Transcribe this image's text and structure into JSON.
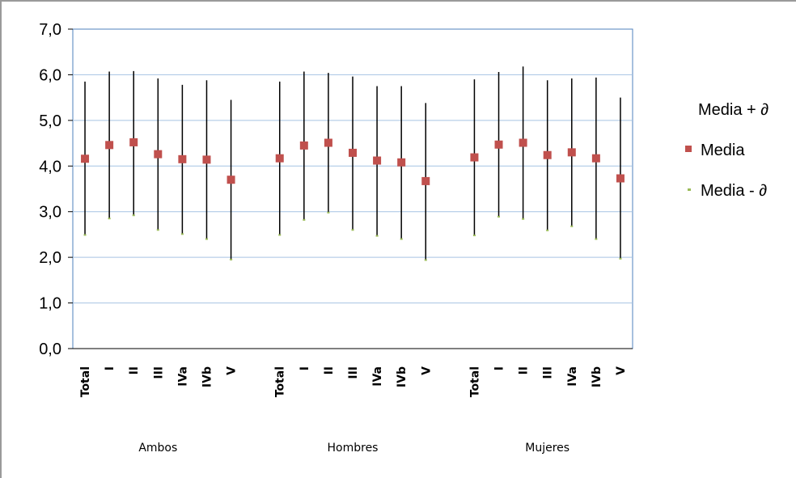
{
  "chart_data": {
    "type": "scatter",
    "title": "",
    "xlabel": "",
    "ylabel": "",
    "ylim": [
      0,
      7
    ],
    "y_ticks": [
      "0,0",
      "1,0",
      "2,0",
      "3,0",
      "4,0",
      "5,0",
      "6,0",
      "7,0"
    ],
    "grid": "horizontal",
    "legend_position": "right",
    "groups": [
      "Ambos",
      "Hombres",
      "Mujeres"
    ],
    "categories": [
      "Total",
      "I",
      "II",
      "III",
      "IVa",
      "IVb",
      "V"
    ],
    "series": [
      {
        "name": "Media + ∂",
        "color": "#000000",
        "values": [
          [
            5.85,
            6.07,
            6.08,
            5.92,
            5.78,
            5.88,
            5.45
          ],
          [
            5.85,
            6.07,
            6.04,
            5.96,
            5.75,
            5.75,
            5.38
          ],
          [
            5.9,
            6.06,
            6.18,
            5.88,
            5.92,
            5.94,
            5.5
          ]
        ]
      },
      {
        "name": "Media",
        "color": "#c0504d",
        "values": [
          [
            4.16,
            4.46,
            4.52,
            4.26,
            4.15,
            4.14,
            3.7
          ],
          [
            4.17,
            4.45,
            4.51,
            4.29,
            4.12,
            4.08,
            3.67
          ],
          [
            4.19,
            4.47,
            4.51,
            4.24,
            4.3,
            4.17,
            3.73
          ]
        ]
      },
      {
        "name": "Media - ∂",
        "color": "#9bbb59",
        "values": [
          [
            2.49,
            2.85,
            2.92,
            2.6,
            2.51,
            2.4,
            1.95
          ],
          [
            2.49,
            2.82,
            2.98,
            2.6,
            2.47,
            2.4,
            1.94
          ],
          [
            2.48,
            2.89,
            2.84,
            2.59,
            2.68,
            2.4,
            1.97
          ]
        ]
      }
    ]
  }
}
